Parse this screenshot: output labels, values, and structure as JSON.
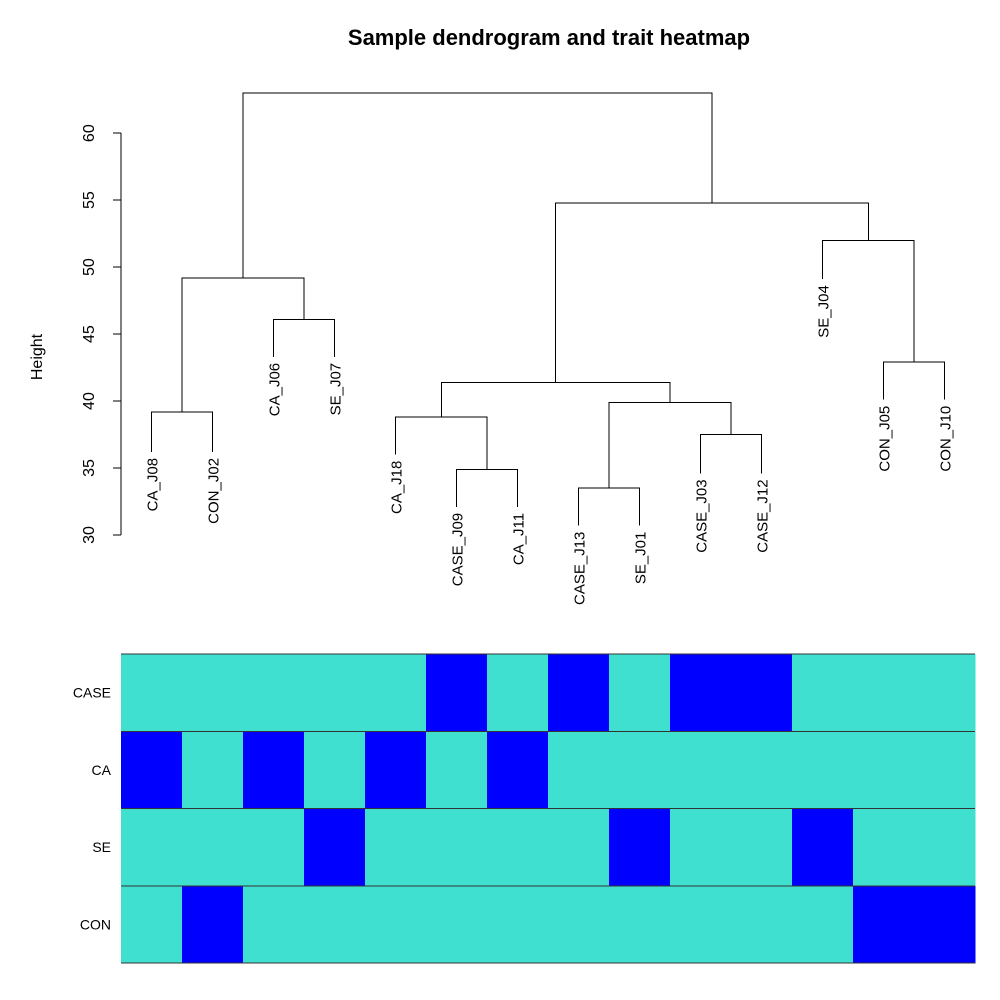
{
  "chart_data": {
    "type": "dendrogram_heatmap",
    "title": "Sample dendrogram and trait heatmap",
    "ylabel": "Height",
    "ylim": [
      30,
      63
    ],
    "yticks": [
      30,
      35,
      40,
      45,
      50,
      55,
      60
    ],
    "grid": false,
    "leaves": [
      {
        "label": "CA_J08",
        "height": 36.2
      },
      {
        "label": "CON_J02",
        "height": 36.2
      },
      {
        "label": "CA_J06",
        "height": 43.3
      },
      {
        "label": "SE_J07",
        "height": 43.3
      },
      {
        "label": "CA_J18",
        "height": 36.0
      },
      {
        "label": "CASE_J09",
        "height": 32.1
      },
      {
        "label": "CA_J11",
        "height": 32.1
      },
      {
        "label": "CASE_J13",
        "height": 30.7
      },
      {
        "label": "SE_J01",
        "height": 30.7
      },
      {
        "label": "CASE_J03",
        "height": 34.6
      },
      {
        "label": "CASE_J12",
        "height": 34.6
      },
      {
        "label": "SE_J04",
        "height": 49.1
      },
      {
        "label": "CON_J05",
        "height": 40.1
      },
      {
        "label": "CON_J10",
        "height": 40.1
      }
    ],
    "merges": [
      {
        "left": -1,
        "right": -2,
        "height": 39.2
      },
      {
        "left": -3,
        "right": -4,
        "height": 46.1
      },
      {
        "left": 1,
        "right": 2,
        "height": 49.2
      },
      {
        "left": -6,
        "right": -7,
        "height": 34.9
      },
      {
        "left": -5,
        "right": 4,
        "height": 38.8
      },
      {
        "left": -8,
        "right": -9,
        "height": 33.5
      },
      {
        "left": -10,
        "right": -11,
        "height": 37.5
      },
      {
        "left": 6,
        "right": 7,
        "height": 39.9
      },
      {
        "left": 5,
        "right": 8,
        "height": 41.4
      },
      {
        "left": -13,
        "right": -14,
        "height": 42.9
      },
      {
        "left": -12,
        "right": 10,
        "height": 52.0
      },
      {
        "left": 9,
        "right": 11,
        "height": 54.8
      },
      {
        "left": 3,
        "right": 12,
        "height": 63.0
      }
    ],
    "heatmap": {
      "rows": [
        "CASE",
        "CA",
        "SE",
        "CON"
      ],
      "values": [
        [
          0,
          0,
          0,
          0,
          0,
          1,
          0,
          1,
          0,
          1,
          1,
          0,
          0,
          0
        ],
        [
          1,
          0,
          1,
          0,
          1,
          0,
          1,
          0,
          0,
          0,
          0,
          0,
          0,
          0
        ],
        [
          0,
          0,
          0,
          1,
          0,
          0,
          0,
          0,
          1,
          0,
          0,
          1,
          0,
          0
        ],
        [
          0,
          1,
          0,
          0,
          0,
          0,
          0,
          0,
          0,
          0,
          0,
          0,
          1,
          1
        ]
      ],
      "colors": {
        "0": "#40E0D0",
        "1": "#0000FF"
      }
    }
  }
}
